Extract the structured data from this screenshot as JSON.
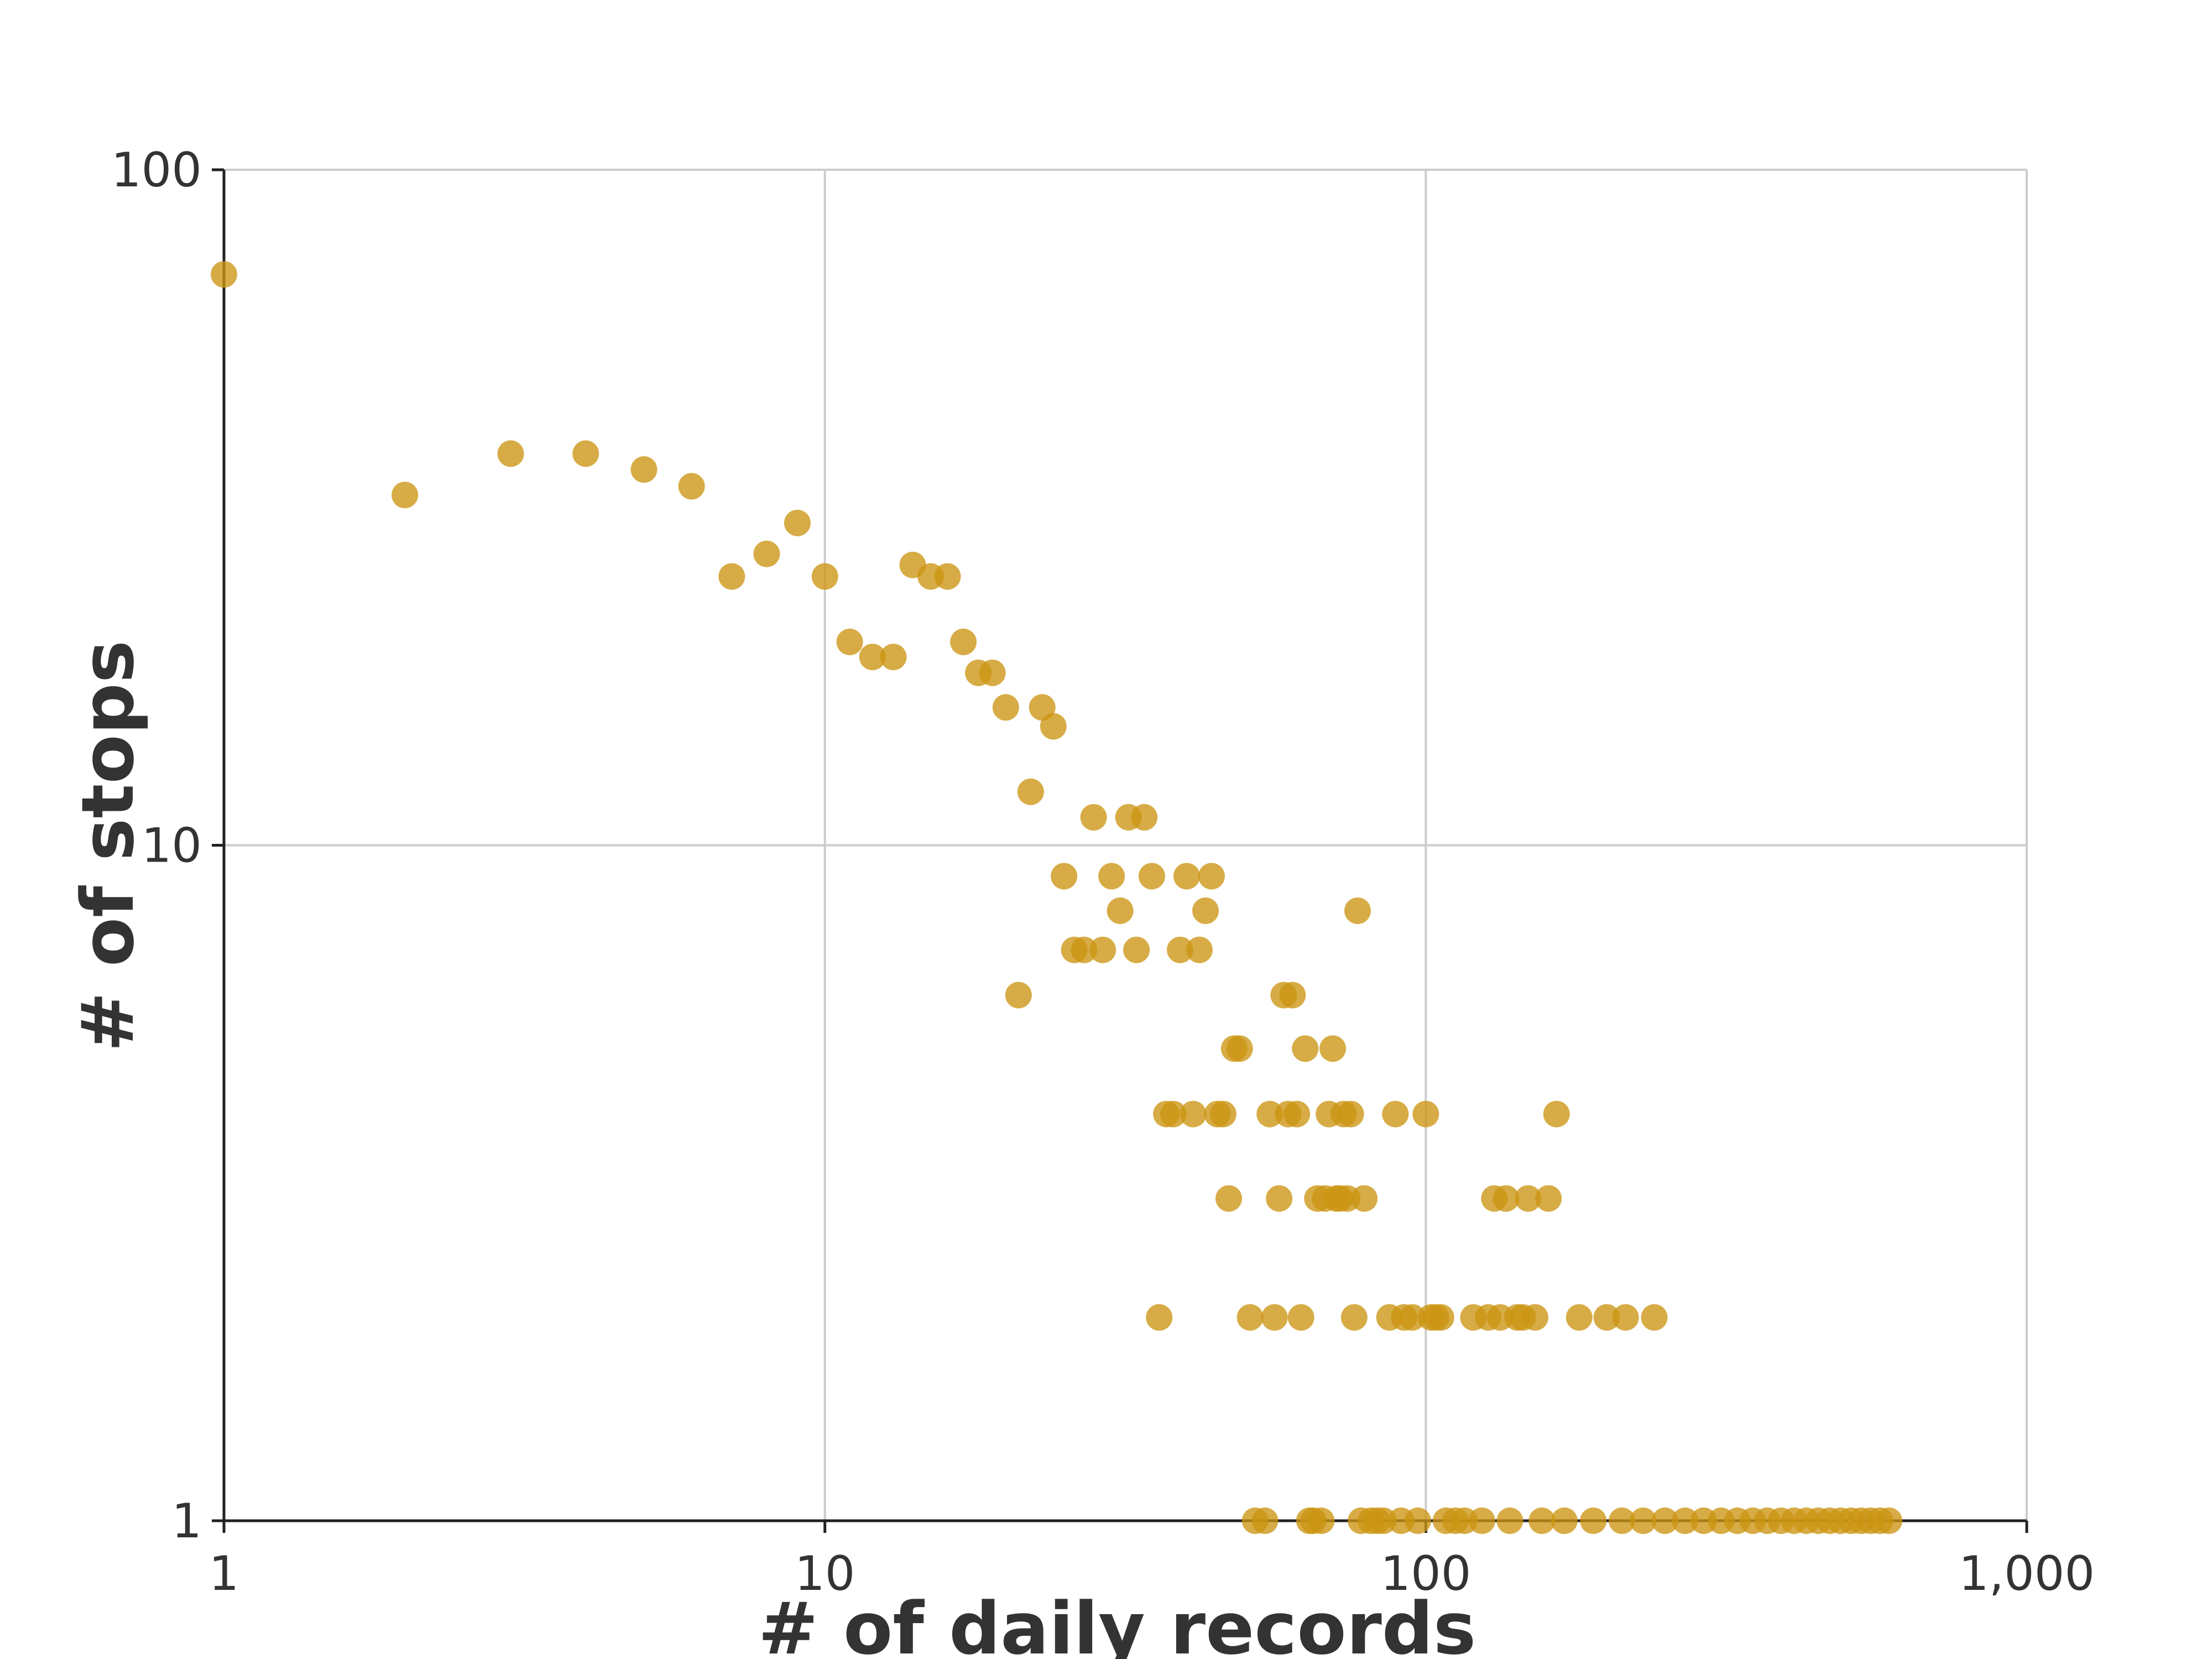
{
  "chart_data": {
    "type": "scatter",
    "title": "",
    "xlabel": "# of daily records",
    "ylabel": "# of stops",
    "x_scale": "log",
    "y_scale": "log",
    "xlim": [
      1,
      1000
    ],
    "ylim": [
      1,
      100
    ],
    "x_ticks": [
      {
        "value": 1,
        "label": "1"
      },
      {
        "value": 10,
        "label": "10"
      },
      {
        "value": 100,
        "label": "100"
      },
      {
        "value": 1000,
        "label": "1,000"
      }
    ],
    "y_ticks": [
      {
        "value": 1,
        "label": "1"
      },
      {
        "value": 10,
        "label": "10"
      },
      {
        "value": 100,
        "label": "100"
      }
    ],
    "grid": true,
    "point_color": "#cc9512",
    "points": [
      [
        1,
        70
      ],
      [
        2,
        33
      ],
      [
        3,
        38
      ],
      [
        4,
        38
      ],
      [
        5,
        36
      ],
      [
        6,
        34
      ],
      [
        7,
        25
      ],
      [
        8,
        27
      ],
      [
        9,
        30
      ],
      [
        10,
        25
      ],
      [
        11,
        20
      ],
      [
        12,
        19
      ],
      [
        13,
        19
      ],
      [
        14,
        26
      ],
      [
        15,
        25
      ],
      [
        16,
        25
      ],
      [
        17,
        20
      ],
      [
        18,
        18
      ],
      [
        19,
        18
      ],
      [
        20,
        16
      ],
      [
        21,
        6
      ],
      [
        22,
        12
      ],
      [
        23,
        16
      ],
      [
        24,
        15
      ],
      [
        25,
        9
      ],
      [
        26,
        7
      ],
      [
        27,
        7
      ],
      [
        28,
        11
      ],
      [
        29,
        7
      ],
      [
        30,
        9
      ],
      [
        31,
        8
      ],
      [
        32,
        11
      ],
      [
        33,
        7
      ],
      [
        34,
        11
      ],
      [
        35,
        9
      ],
      [
        36,
        2
      ],
      [
        37,
        4
      ],
      [
        38,
        4
      ],
      [
        39,
        7
      ],
      [
        40,
        9
      ],
      [
        41,
        4
      ],
      [
        42,
        7
      ],
      [
        43,
        8
      ],
      [
        44,
        9
      ],
      [
        45,
        4
      ],
      [
        46,
        4
      ],
      [
        47,
        3
      ],
      [
        48,
        5
      ],
      [
        49,
        5
      ],
      [
        51,
        2
      ],
      [
        52,
        1
      ],
      [
        54,
        1
      ],
      [
        55,
        4
      ],
      [
        56,
        2
      ],
      [
        57,
        3
      ],
      [
        58,
        6
      ],
      [
        59,
        4
      ],
      [
        60,
        6
      ],
      [
        61,
        4
      ],
      [
        62,
        2
      ],
      [
        63,
        5
      ],
      [
        64,
        1
      ],
      [
        65,
        1
      ],
      [
        66,
        3
      ],
      [
        67,
        1
      ],
      [
        68,
        3
      ],
      [
        69,
        4
      ],
      [
        70,
        5
      ],
      [
        71,
        3
      ],
      [
        72,
        3
      ],
      [
        73,
        4
      ],
      [
        74,
        3
      ],
      [
        75,
        4
      ],
      [
        76,
        2
      ],
      [
        77,
        8
      ],
      [
        78,
        1
      ],
      [
        79,
        3
      ],
      [
        81,
        1
      ],
      [
        83,
        1
      ],
      [
        85,
        1
      ],
      [
        87,
        2
      ],
      [
        89,
        4
      ],
      [
        91,
        1
      ],
      [
        92,
        2
      ],
      [
        95,
        2
      ],
      [
        97,
        1
      ],
      [
        100,
        4
      ],
      [
        102,
        2
      ],
      [
        104,
        2
      ],
      [
        106,
        2
      ],
      [
        108,
        1
      ],
      [
        112,
        1
      ],
      [
        116,
        1
      ],
      [
        120,
        2
      ],
      [
        124,
        1
      ],
      [
        127,
        2
      ],
      [
        130,
        3
      ],
      [
        133,
        2
      ],
      [
        136,
        3
      ],
      [
        138,
        1
      ],
      [
        142,
        2
      ],
      [
        145,
        2
      ],
      [
        148,
        3
      ],
      [
        152,
        2
      ],
      [
        156,
        1
      ],
      [
        160,
        3
      ],
      [
        165,
        4
      ],
      [
        170,
        1
      ],
      [
        180,
        2
      ],
      [
        190,
        1
      ],
      [
        200,
        2
      ],
      [
        212,
        1
      ],
      [
        215,
        2
      ],
      [
        230,
        1
      ],
      [
        240,
        2
      ],
      [
        250,
        1
      ],
      [
        270,
        1
      ],
      [
        290,
        1
      ],
      [
        310,
        1
      ],
      [
        330,
        1
      ],
      [
        350,
        1
      ],
      [
        370,
        1
      ],
      [
        390,
        1
      ],
      [
        410,
        1
      ],
      [
        430,
        1
      ],
      [
        450,
        1
      ],
      [
        470,
        1
      ],
      [
        490,
        1
      ],
      [
        510,
        1
      ],
      [
        530,
        1
      ],
      [
        550,
        1
      ],
      [
        570,
        1
      ],
      [
        590,
        1
      ]
    ]
  }
}
